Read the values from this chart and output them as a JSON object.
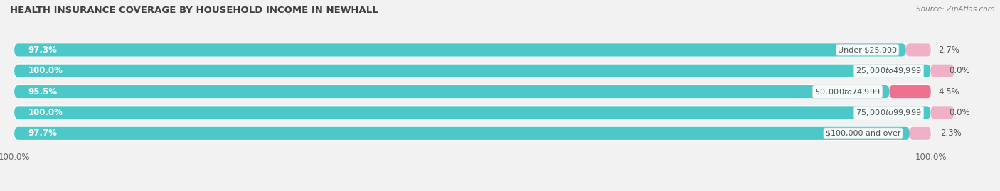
{
  "title": "HEALTH INSURANCE COVERAGE BY HOUSEHOLD INCOME IN NEWHALL",
  "source": "Source: ZipAtlas.com",
  "categories": [
    "Under $25,000",
    "$25,000 to $49,999",
    "$50,000 to $74,999",
    "$75,000 to $99,999",
    "$100,000 and over"
  ],
  "with_coverage": [
    97.3,
    100.0,
    95.5,
    100.0,
    97.7
  ],
  "without_coverage": [
    2.7,
    0.0,
    4.5,
    0.0,
    2.3
  ],
  "color_with": "#4dc8c8",
  "color_without": "#f07090",
  "color_without_light": "#f0b0c8",
  "color_track": "#e8e8e8",
  "bar_height": 0.62,
  "background_color": "#f2f2f2",
  "title_color": "#404040",
  "source_color": "#808080",
  "label_color": "#505050"
}
